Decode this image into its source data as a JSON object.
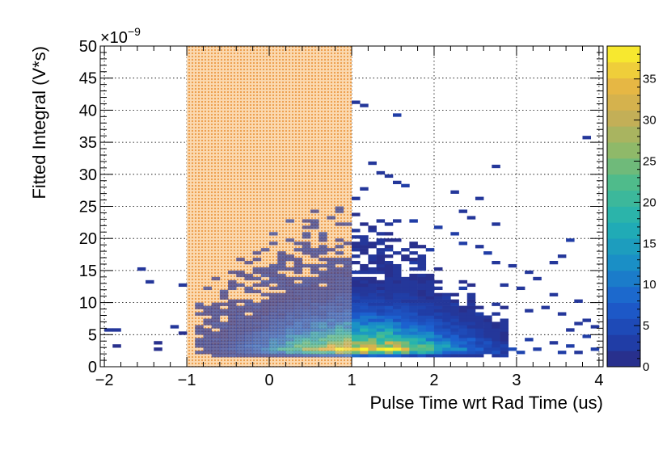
{
  "chart_data": {
    "type": "heatmap",
    "title": "",
    "xlabel": "Pulse Time wrt Rad Time (us)",
    "ylabel": "Fitted Integral (V*s)",
    "y_exponent_label": "×10",
    "y_exponent_power": "−9",
    "xlim": [
      -2.05,
      4.05
    ],
    "ylim": [
      0,
      50
    ],
    "x_ticks": [
      "−2",
      "−1",
      "0",
      "1",
      "2",
      "3",
      "4"
    ],
    "y_ticks": [
      "0",
      "5",
      "10",
      "15",
      "20",
      "25",
      "30",
      "35",
      "40",
      "45",
      "50"
    ],
    "grid": true,
    "highlight_band": {
      "x_range": [
        -1,
        1
      ],
      "color": "#f4a94e"
    },
    "colorbar": {
      "min": 0,
      "max": 39,
      "ticks": [
        "0",
        "5",
        "10",
        "15",
        "20",
        "25",
        "30",
        "35"
      ]
    },
    "x_bin_width": 0.1,
    "y_bin_width": 0.5,
    "cells": [
      [
        -1.95,
        5.75,
        2
      ],
      [
        -1.85,
        5.75,
        2
      ],
      [
        -1.85,
        3.25,
        1
      ],
      [
        -1.55,
        15.25,
        2
      ],
      [
        -1.45,
        13.25,
        2
      ],
      [
        -1.35,
        3.75,
        1
      ],
      [
        -1.35,
        2.75,
        1
      ],
      [
        -1.15,
        6.25,
        2
      ],
      [
        -1.05,
        12.75,
        2
      ],
      [
        -1.05,
        5.25,
        1
      ],
      [
        1.05,
        41.25,
        2
      ],
      [
        1.15,
        40.75,
        2
      ],
      [
        1.55,
        39.25,
        3
      ],
      [
        1.25,
        31.75,
        2
      ],
      [
        1.35,
        30.25,
        2
      ],
      [
        1.45,
        29.75,
        2
      ],
      [
        1.55,
        28.75,
        2
      ],
      [
        1.65,
        28.25,
        3
      ],
      [
        1.15,
        27.75,
        2
      ],
      [
        1.05,
        26.25,
        2
      ],
      [
        2.25,
        27.25,
        2
      ],
      [
        2.55,
        26.25,
        2
      ],
      [
        2.75,
        31.25,
        2
      ],
      [
        3.85,
        35.75,
        2
      ],
      [
        3.65,
        19.75,
        3
      ],
      [
        3.55,
        17.25,
        2
      ],
      [
        3.45,
        16.25,
        2
      ],
      [
        2.35,
        24.25,
        2
      ],
      [
        2.45,
        23.25,
        2
      ],
      [
        2.75,
        22.25,
        2
      ],
      [
        2.05,
        21.75,
        3
      ],
      [
        2.25,
        20.75,
        3
      ],
      [
        2.35,
        19.25,
        3
      ],
      [
        2.55,
        18.75,
        2
      ],
      [
        2.65,
        17.75,
        3
      ],
      [
        2.75,
        16.25,
        2
      ],
      [
        2.95,
        15.75,
        2
      ],
      [
        3.15,
        14.75,
        2
      ],
      [
        3.25,
        13.75,
        2
      ],
      [
        2.85,
        12.75,
        2
      ],
      [
        3.05,
        12.25,
        2
      ],
      [
        3.45,
        11.25,
        2
      ],
      [
        3.75,
        10.25,
        2
      ],
      [
        3.35,
        9.25,
        2
      ],
      [
        3.15,
        8.75,
        2
      ],
      [
        3.55,
        8.25,
        2
      ],
      [
        3.85,
        7.25,
        2
      ],
      [
        3.75,
        6.75,
        2
      ],
      [
        3.95,
        6.25,
        2
      ],
      [
        3.65,
        5.75,
        2
      ],
      [
        3.85,
        4.75,
        3
      ],
      [
        3.15,
        4.25,
        3
      ],
      [
        3.45,
        3.75,
        2
      ],
      [
        3.65,
        3.25,
        3
      ],
      [
        3.95,
        2.75,
        3
      ],
      [
        3.75,
        2.25,
        2
      ],
      [
        3.55,
        2.25,
        3
      ],
      [
        3.25,
        2.75,
        3
      ],
      [
        3.05,
        2.25,
        4
      ],
      [
        2.85,
        3.25,
        4
      ],
      [
        2.95,
        2.75,
        5
      ],
      [
        2.65,
        3.75,
        6
      ],
      [
        2.75,
        2.25,
        6
      ],
      [
        2.45,
        4.25,
        8
      ]
    ],
    "cluster": {
      "x_range": [
        -0.9,
        2.95
      ],
      "peak_x": 1.15,
      "peak_y": 2.75
    }
  }
}
